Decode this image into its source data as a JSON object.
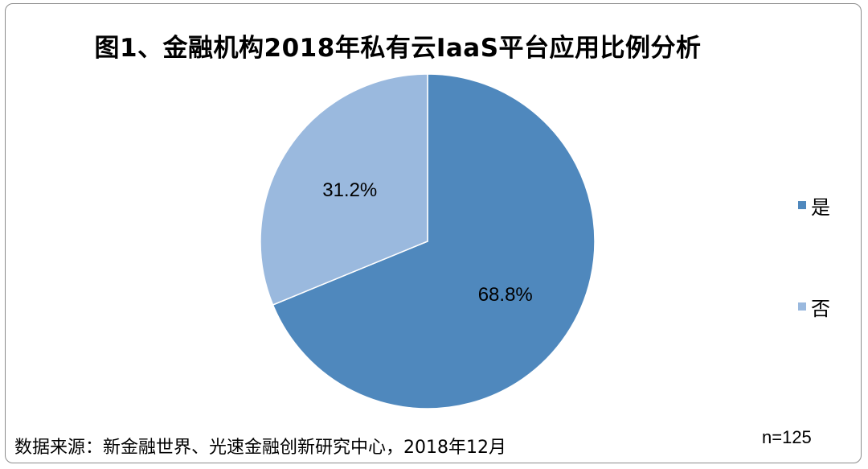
{
  "chart_data": {
    "type": "pie",
    "title": "图1、金融机构2018年私有云IaaS平台应用比例分析",
    "categories": [
      "是",
      "否"
    ],
    "values": [
      68.8,
      31.2
    ],
    "data_labels": [
      "68.8%",
      "31.2%"
    ],
    "colors": [
      "#4f88bd",
      "#9ab9de"
    ],
    "legend_position": "right"
  },
  "footer": {
    "source": "数据来源：新金融世界、光速金融创新研究中心，2018年12月",
    "sample_size": "n=125"
  }
}
